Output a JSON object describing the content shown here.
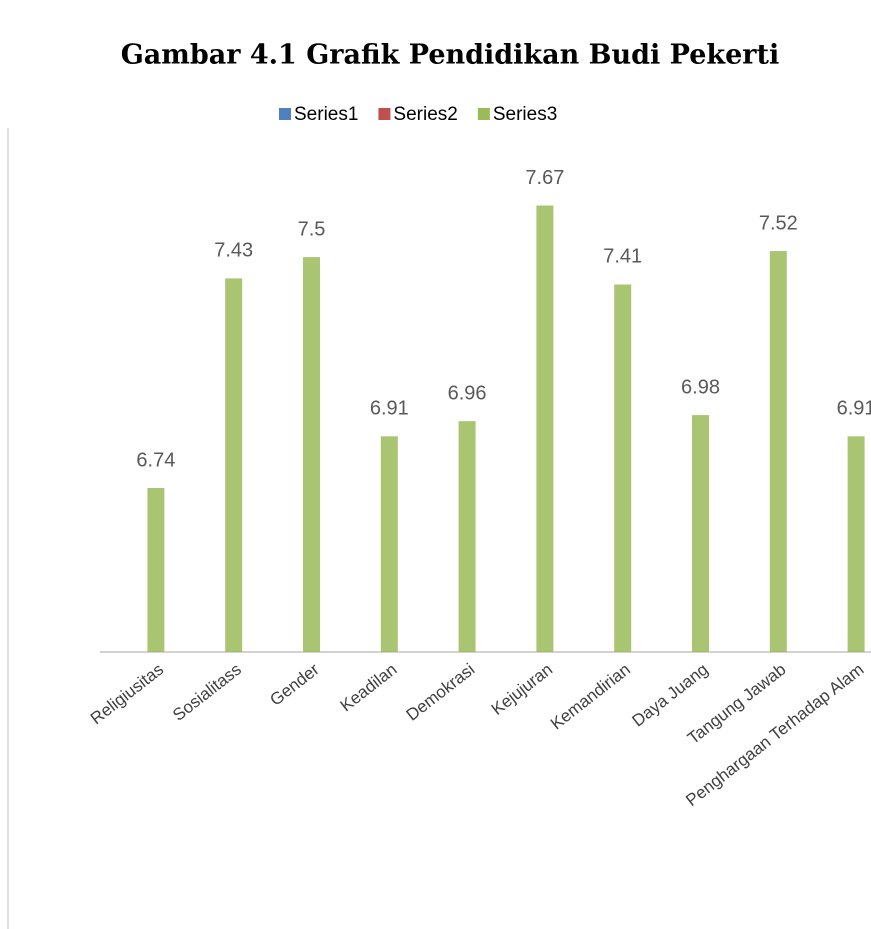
{
  "chart_data": {
    "type": "bar",
    "title": "Gambar 4.1 Grafik Pendidikan Budi Pekerti",
    "categories": [
      "Religiusitas",
      "Sosialitass",
      "Gender",
      "Keadilan",
      "Demokrasi",
      "Kejujuran",
      "Kemandirian",
      "Daya Juang",
      "Tangung Jawab",
      "Penghargaan Terhadap Alam"
    ],
    "series": [
      {
        "name": "Series1",
        "color": "#4f81bd",
        "values": [
          null,
          null,
          null,
          null,
          null,
          null,
          null,
          null,
          null,
          null
        ]
      },
      {
        "name": "Series2",
        "color": "#c0504d",
        "values": [
          null,
          null,
          null,
          null,
          null,
          null,
          null,
          null,
          null,
          null
        ]
      },
      {
        "name": "Series3",
        "color": "#9bbb59",
        "values": [
          6.74,
          7.43,
          7.5,
          6.91,
          6.96,
          7.67,
          7.41,
          6.98,
          7.52,
          6.91
        ]
      }
    ],
    "ylim": [
      6.2,
      7.8
    ],
    "legend": "top"
  }
}
